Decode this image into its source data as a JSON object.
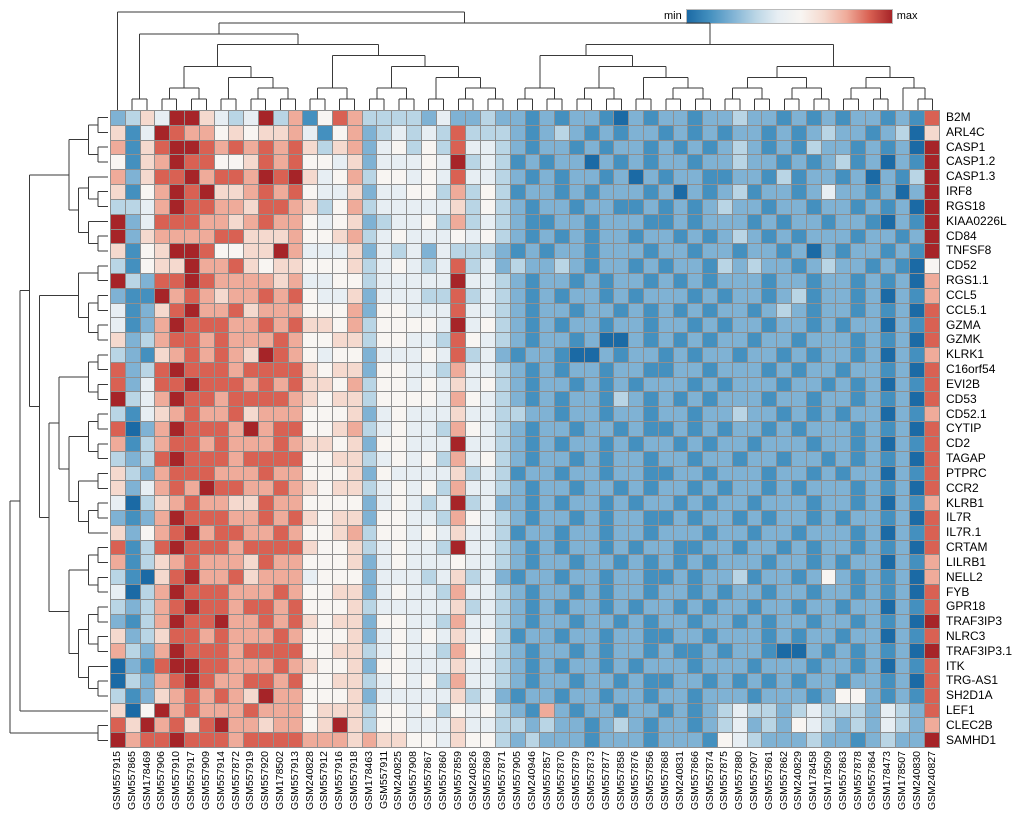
{
  "chart_data": {
    "type": "heatmap",
    "title": "",
    "legend": {
      "min": "min",
      "max": "max"
    },
    "palette": [
      "#1b6aa5",
      "#4490bf",
      "#7fb2d4",
      "#b9d5e5",
      "#e7eef3",
      "#f8f5f2",
      "#f5d9ce",
      "#efab9a",
      "#d96153",
      "#a62428"
    ],
    "values_encoding": "each row is a 56-char string; digit 0 = min (dark blue) ... 9 = max (dark red)",
    "row_labels": [
      "B2M",
      "ARL4C",
      "CASP1",
      "CASP1.2",
      "CASP1.3",
      "IRF8",
      "RGS18",
      "KIAA0226L",
      "CD84",
      "TNFSF8",
      "CD52",
      "RGS1.1",
      "CCL5",
      "CCL5.1",
      "GZMA",
      "GZMK",
      "KLRK1",
      "C16orf54",
      "EVI2B",
      "CD53",
      "CD52.1",
      "CYTIP",
      "CD2",
      "TAGAP",
      "PTPRC",
      "CCR2",
      "KLRB1",
      "IL7R",
      "IL7R.1",
      "CRTAM",
      "LILRB1",
      "NELL2",
      "FYB",
      "GPR18",
      "TRAF3IP3",
      "NLRC3",
      "TRAF3IP3.1",
      "ITK",
      "TRG-AS1",
      "SH2D1A",
      "LEF1",
      "CLEC2B",
      "SAMHD1"
    ],
    "col_labels": [
      "GSM557915",
      "GSM557865",
      "GSM178469",
      "GSM557906",
      "GSM557910",
      "GSM557917",
      "GSM557909",
      "GSM557914",
      "GSM557872",
      "GSM557919",
      "GSM557920",
      "GSM178502",
      "GSM557913",
      "GSM240828",
      "GSM557912",
      "GSM557916",
      "GSM557918",
      "GSM178463",
      "GSM557911",
      "GSM240825",
      "GSM557908",
      "GSM557867",
      "GSM557860",
      "GSM557859",
      "GSM240826",
      "GSM557869",
      "GSM557871",
      "GSM557905",
      "GSM240946",
      "GSM557857",
      "GSM557870",
      "GSM557879",
      "GSM557873",
      "GSM557877",
      "GSM557858",
      "GSM557876",
      "GSM557856",
      "GSM557868",
      "GSM240831",
      "GSM557866",
      "GSM557874",
      "GSM557875",
      "GSM557880",
      "GSM557907",
      "GSM557861",
      "GSM557862",
      "GSM240829",
      "GSM178458",
      "GSM178509",
      "GSM557863",
      "GSM557878",
      "GSM557864",
      "GSM178473",
      "GSM178507",
      "GSM240830",
      "GSM240827"
    ],
    "rows": [
      "2364996434937158733332422322121221021221223221212122121 8",
      "6149877565667415723434383332123212122121212212123221230 6",
      "7168998787878636724535384432122121221212123212132212120 9",
      "5167988556878554624445493431212202121221223221212312021 9",
      "7268897887989645735545484432121221202122112213122120213 9",
      "6157989667878544624455373531221212221202123122124221202 9",
      "3347988776887635734444463532122122112121232212212212120 9",
      "9248887767877545623445373432112212221121222121221221021 9",
      "9267777886667556734544454532121212212212123212122212212 9",
      "6156998556697444624342433321212212221221221221202122121 9",
      "3156697786566555634543483423223212212122132322123221210 5",
      "9328898777767445534444494432122121221212122212212212120 7",
      "2119787677878544624443383432121221212221212212312212021 7",
      "4126897786777555725544484432122122121212122123212212120 8",
      "4127988877878665735555494532121221221221212212212122021 8",
      "6237887877787556635544385432122120021212122122122212120 8",
      "3216787876987545524445483421221002122121221221212212021 7",
      "8238988878888656625544374432121221221122122212122122120 8",
      "8248898887878665735545464532122121212221212221221212021 8",
      "9347988788887656635555475432121221321212122212212212120 8",
      "3146787786777555624544464433221221221221223221212122021 7",
      "8027988879788556734544375432122122121121212212122212120 8",
      "7137887877787665625544494432121221212212122122212212021 8",
      "3238988878888556634545374532122121221221221221221212120 8",
      "6327888777877555625444463431221221221122122212212122021 8",
      "6247879887787656634545374432122122121221212212122212120 8",
      "4036787766877555524543493422121221212212122122212212021 7",
      "2127988877878656625544375432122121221121221212212122120 8",
      "6257897887787556735545464431221221221222122122122212021 8",
      "8138988878888655634544394432121221212211221221212212120 8",
      "7136787776877555624544454432122122121212122212212122021 7",
      "3106897786777455524443463421221221221121223122125212120 7",
      "4037988877787556624544374432122121221221212212212212120 8",
      "3237898878878555634444463432121221212212122122122122021 8",
      "2137988977878656625544374432122122121221221212212212120 9",
      "6236887877787555624545464531221221221122122212122122021 8",
      "7327988878888556634544375432122121221211212210021212120 9",
      "0218998877787655625544464432121221212221222122212212021 8",
      "0327898778878556634545374432122122121122121212122122120 8",
      "3126787876977555624444463421221221221221222122212552121 8",
      "6059787778777566635545354532172122122121234332343332432 8",
      "8697868977677569635544464433232212321221234232543232432 7",
      "9788988878888777676655465532322212221222154322232212322 9"
    ],
    "col_dendrogram": [
      0,
      [
        [
          [
            1,
            2
          ],
          [
            [
              [
                [
                  3,
                  4
                ],
                [
                  5,
                  6
                ]
              ],
              [
                [
                  7,
                  8
                ],
                [
                  [
                    9,
                    10
                  ],
                  [
                    11,
                    12
                  ]
                ]
              ]
            ],
            [
              [
                [
                  13,
                  14
                ],
                [
                  15,
                  16
                ]
              ],
              [
                [
                  [
                    17,
                    18
                  ],
                  [
                    19,
                    20
                  ]
                ],
                [
                  [
                    21,
                    22
                  ],
                  [
                    [
                      23,
                      24
                    ],
                    [
                      25,
                      26
                    ]
                  ]
                ]
              ]
            ]
          ]
        ],
        [
          [
            [
              [
                27,
                28
              ],
              [
                29,
                30
              ]
            ],
            [
              [
                [
                  31,
                  32
                ],
                [
                  33,
                  34
                ]
              ],
              [
                [
                  35,
                  36
                ],
                [
                  [
                    37,
                    38
                  ],
                  [
                    39,
                    40
                  ]
                ]
              ]
            ]
          ],
          [
            [
              [
                [
                  41,
                  42
                ],
                [
                  43,
                  44
                ]
              ],
              [
                [
                  45,
                  46
                ],
                [
                  47,
                  48
                ]
              ]
            ],
            [
              [
                [
                  49,
                  50
                ],
                [
                  51,
                  52
                ]
              ],
              [
                53,
                [
                  54,
                  55
                ]
              ]
            ]
          ]
        ]
      ]
    ],
    "row_dendrogram": [
      [
        [
          [
            [
              [
                0,
                1
              ],
              [
                2,
                3
              ]
            ],
            [
              [
                4,
                [
                  5,
                  6
                ]
              ],
              [
                7,
                [
                  8,
                  9
                ]
              ]
            ]
          ],
          [
            [
              [
                10,
                11
              ],
              [
                [
                  12,
                  13
                ],
                [
                  14,
                  15
                ]
              ]
            ],
            [
              [
                [
                  [
                    16,
                    17
                  ],
                  [
                    18,
                    19
                  ]
                ],
                [
                  [
                    [
                      20,
                      21
                    ],
                    [
                      22,
                      23
                    ]
                  ],
                  [
                    [
                      24,
                      25
                    ],
                    [
                      [
                        26,
                        27
                      ],
                      28
                    ]
                  ]
                ]
              ],
              [
                [
                  [
                    29,
                    30
                  ],
                  [
                    31,
                    32
                  ]
                ],
                [
                  [
                    [
                      33,
                      34
                    ],
                    [
                      35,
                      36
                    ]
                  ],
                  [
                    37,
                    [
                      38,
                      39
                    ]
                  ]
                ]
              ]
            ]
          ]
        ],
        40
      ],
      [
        41,
        42
      ]
    ]
  }
}
